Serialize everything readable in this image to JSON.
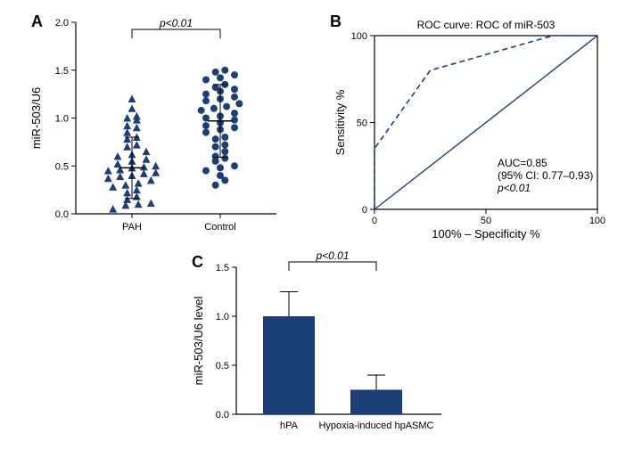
{
  "panelA": {
    "letter": "A",
    "type": "scatter-strip",
    "ylabel": "miR-503/U6",
    "ylim": [
      0,
      2.0
    ],
    "ytick_step": 0.5,
    "categories": [
      "PAH",
      "Control"
    ],
    "annotation": "p<0.01",
    "marker_stroke": "#1b3f78",
    "marker_fill": "#1b3f78",
    "axis_color": "#000000",
    "bg": "#ffffff",
    "series": [
      {
        "name": "PAH",
        "marker": "triangle",
        "mean": 0.48,
        "err": 0.32,
        "points": [
          0.05,
          0.09,
          0.1,
          0.11,
          0.15,
          0.18,
          0.22,
          0.25,
          0.28,
          0.3,
          0.32,
          0.35,
          0.37,
          0.39,
          0.4,
          0.42,
          0.43,
          0.45,
          0.46,
          0.48,
          0.49,
          0.5,
          0.52,
          0.55,
          0.57,
          0.6,
          0.62,
          0.65,
          0.7,
          0.72,
          0.78,
          0.8,
          0.85,
          0.9,
          0.92,
          0.98,
          1.0,
          1.02,
          1.1,
          1.2
        ]
      },
      {
        "name": "Control",
        "marker": "circle",
        "mean": 0.97,
        "err": 0.38,
        "points": [
          0.3,
          0.35,
          0.4,
          0.45,
          0.48,
          0.5,
          0.55,
          0.58,
          0.6,
          0.65,
          0.7,
          0.72,
          0.78,
          0.8,
          0.85,
          0.88,
          0.9,
          0.92,
          0.95,
          0.98,
          1.0,
          1.02,
          1.05,
          1.08,
          1.1,
          1.12,
          1.15,
          1.18,
          1.2,
          1.22,
          1.25,
          1.28,
          1.3,
          1.32,
          1.35,
          1.4,
          1.42,
          1.45,
          1.48,
          1.5
        ]
      }
    ]
  },
  "panelB": {
    "letter": "B",
    "type": "roc",
    "title": "ROC curve: ROC of miR-503",
    "xlabel": "100% – Specificity %",
    "ylabel": "Sensitivity %",
    "xlim": [
      0,
      100
    ],
    "ylim": [
      0,
      100
    ],
    "xtick_step": 50,
    "ytick_step": 50,
    "line_color": "#1b3f78",
    "dash_pattern": "6,4",
    "line_width": 1.6,
    "diag_color": "#1b3f78",
    "axis_color": "#000000",
    "roc_points": [
      [
        0,
        0
      ],
      [
        0,
        35
      ],
      [
        25,
        80
      ],
      [
        80,
        100
      ],
      [
        100,
        100
      ]
    ],
    "stats": {
      "auc": "AUC=0.85",
      "ci": "(95% CI: 0.77–0.93)",
      "p": "p<0.01"
    }
  },
  "panelC": {
    "letter": "C",
    "type": "bar",
    "ylabel": "miR-503/U6 level",
    "ylim": [
      0,
      1.5
    ],
    "ytick_step": 0.5,
    "bar_color": "#1b3f78",
    "err_color": "#000000",
    "axis_color": "#000000",
    "annotation": "p<0.01",
    "bars": [
      {
        "label": "hPA",
        "value": 1.0,
        "err": 0.25
      },
      {
        "label": "Hypoxia-induced hpASMC",
        "value": 0.25,
        "err": 0.15
      }
    ]
  }
}
